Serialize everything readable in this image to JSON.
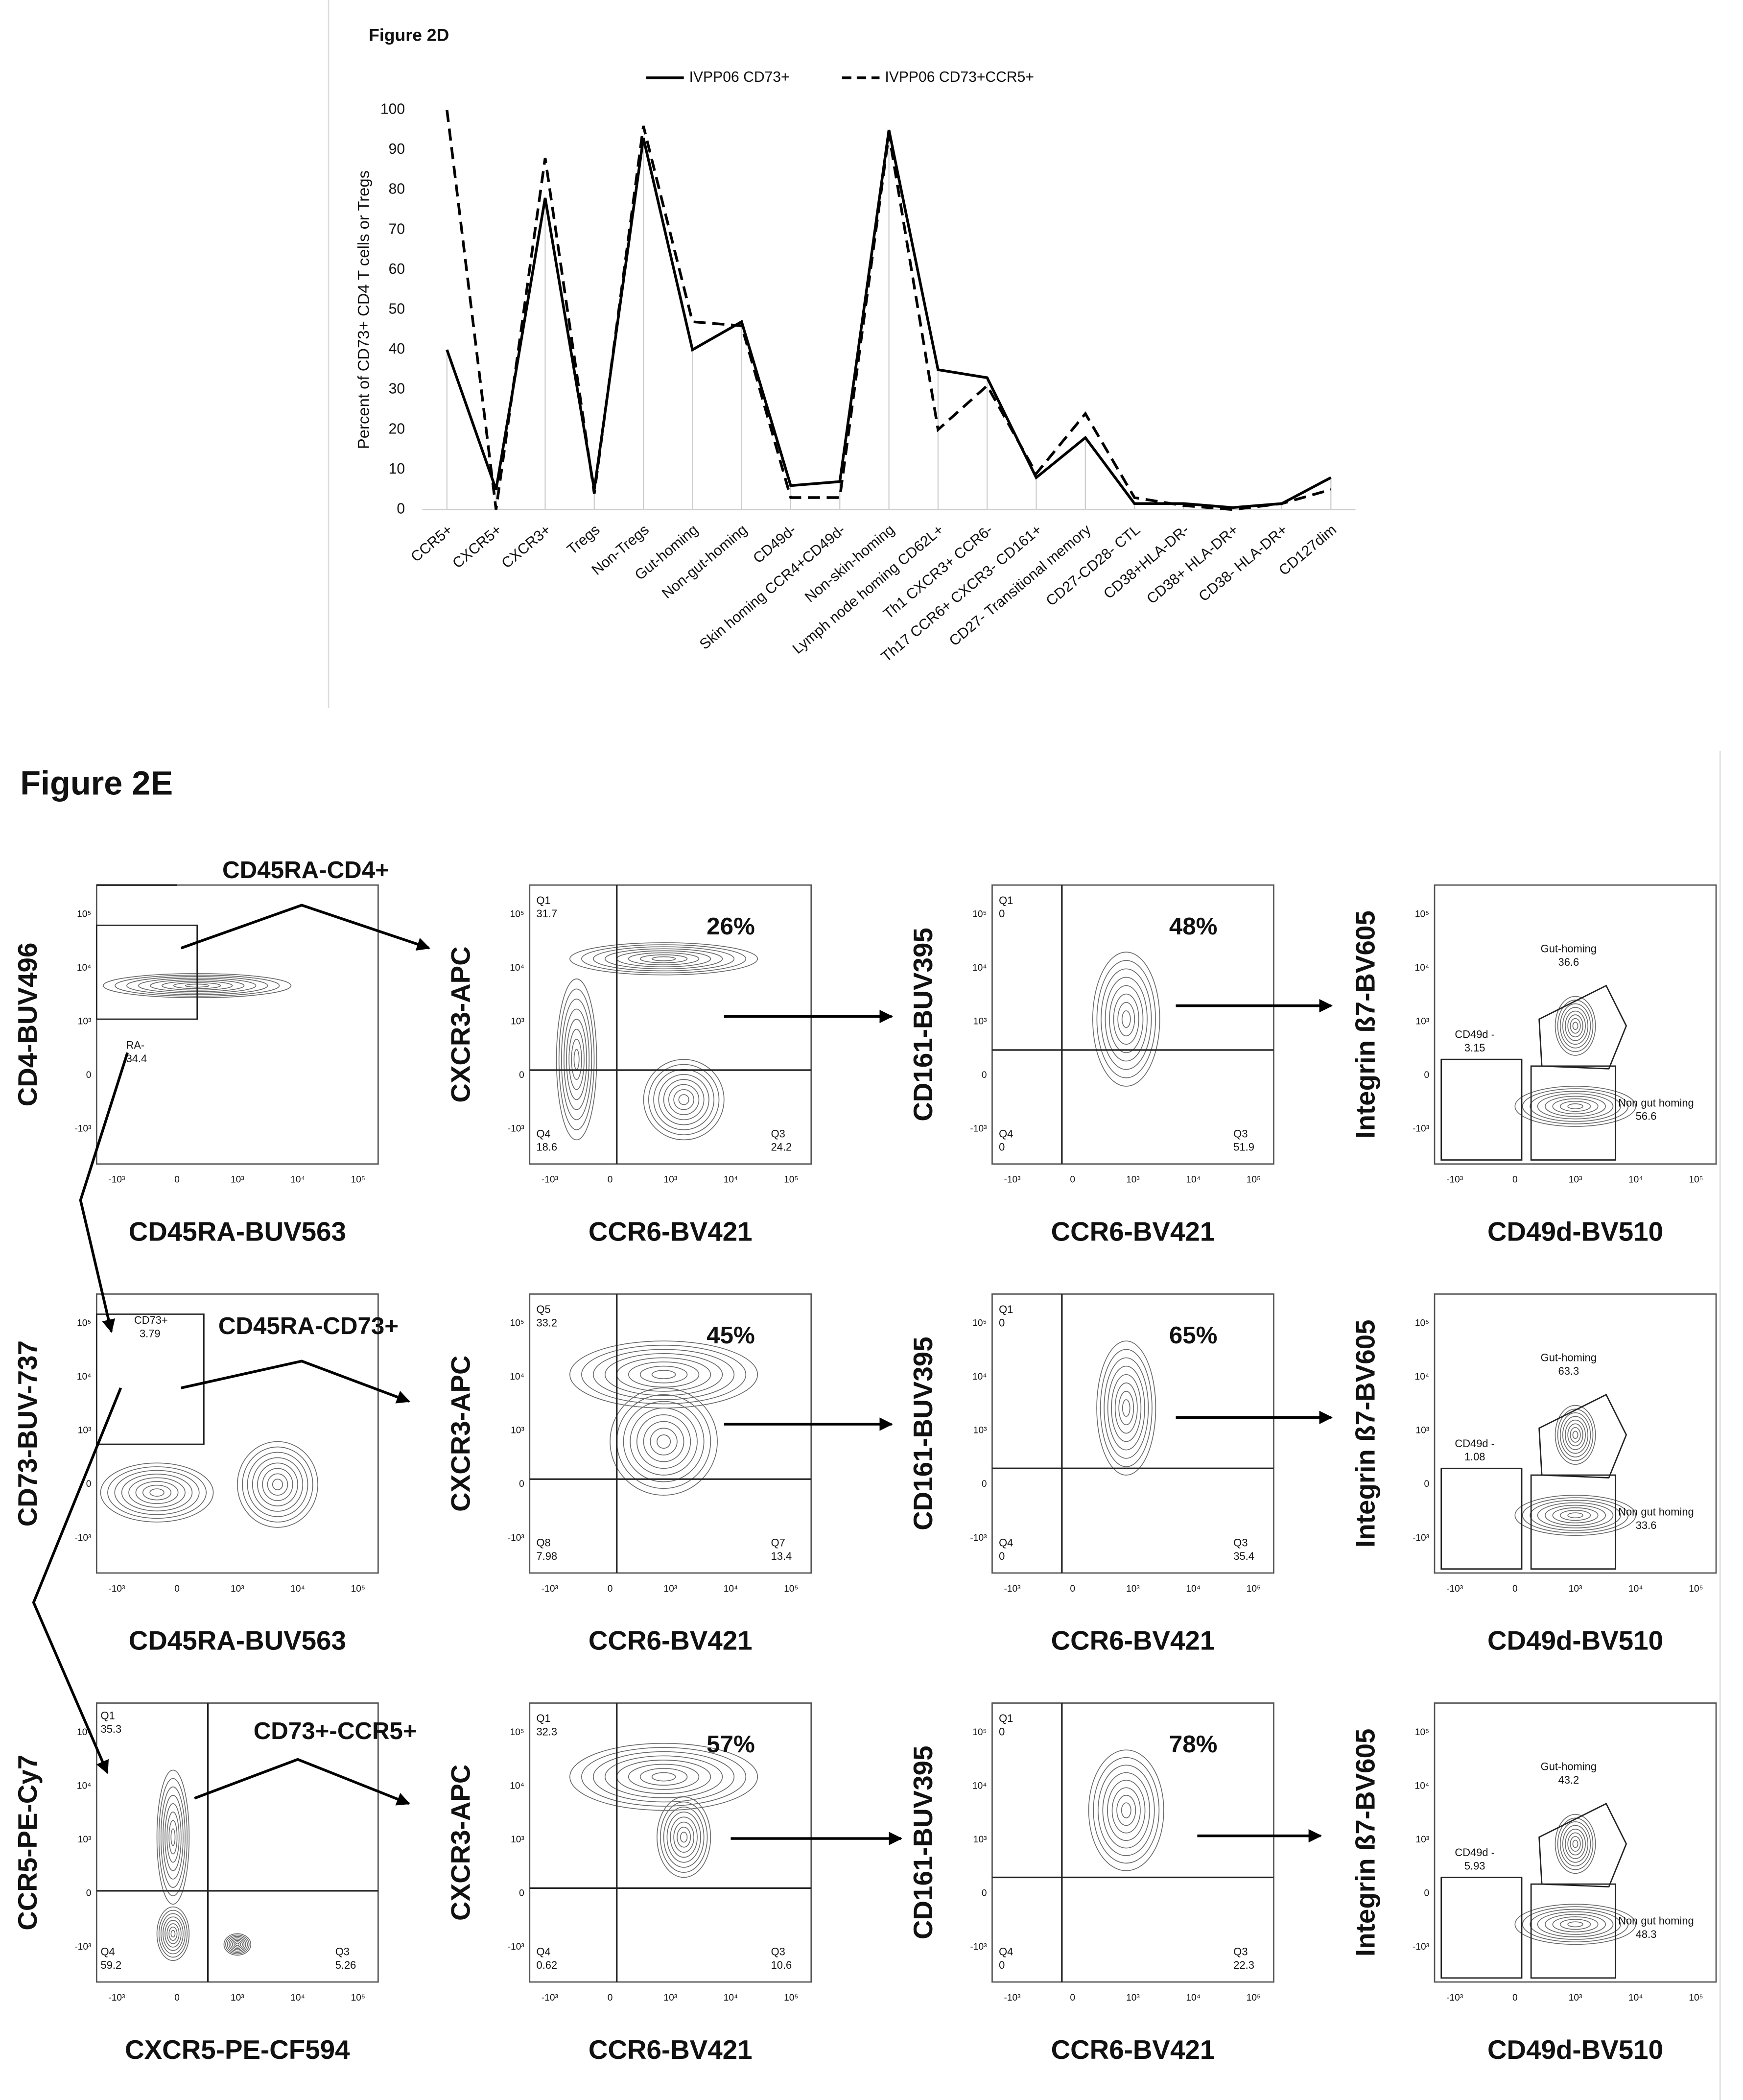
{
  "chart_data": {
    "type": "line",
    "title": "Figure 2D",
    "y_label": "Percent of CD73+ CD4 T cells  or Tregs",
    "categories": [
      "CCR5+",
      "CXCR5+",
      "CXCR3+",
      "Tregs",
      "Non-Tregs",
      "Gut-homing",
      "Non-gut-homing",
      "CD49d-",
      "Skin homing CCR4+CD49d-",
      "Non-skin-homing",
      "Lymph node homing CD62L+",
      "Th1 CXCR3+ CCR6-",
      "Th17 CCR6+ CXCR3- CD161+",
      "CD27- Transitional memory",
      "CD27-CD28- CTL",
      "CD38+HLA-DR-",
      "CD38+ HLA-DR+",
      "CD38- HLA-DR+",
      "CD127dim"
    ],
    "series": [
      {
        "name": "IVPP06 CD73+",
        "color": "#000000",
        "dash": false,
        "values": [
          40,
          5,
          78,
          5,
          93,
          40,
          47,
          6,
          7,
          95,
          35,
          33,
          8,
          18,
          1.5,
          1.5,
          0.5,
          1.5,
          8
        ]
      },
      {
        "name": "IVPP06 CD73+CCR5+",
        "color": "#000000",
        "dash": true,
        "values": [
          100,
          0,
          88,
          4,
          96,
          47,
          46,
          3,
          3,
          94,
          20,
          31,
          9,
          24,
          3,
          1,
          0,
          1.5,
          5
        ]
      }
    ],
    "ylim": [
      0,
      100
    ],
    "yticks": [
      0,
      10,
      20,
      30,
      40,
      50,
      60,
      70,
      80,
      90,
      100
    ],
    "grid": true
  },
  "figure_2e": {
    "title": "Figure 2E",
    "ticks": {
      "y": [
        "10⁵",
        "10⁴",
        "10³",
        "0",
        "-10³"
      ],
      "x": [
        "-10³",
        "0",
        "10³",
        "10⁴",
        "10⁵"
      ]
    },
    "gate_labels": [
      "CD45RA-CD4+",
      "CD45RA-CD73+",
      "CD73+-CCR5+"
    ],
    "rows": [
      [
        {
          "y_label": "CD4-BUV496",
          "x_label": "CD45RA-BUV563",
          "texts": [
            "RA-",
            "34.4"
          ]
        },
        {
          "y_label": "CXCR3-APC",
          "x_label": "CCR6-BV421",
          "texts": [
            "Q1",
            "31.7",
            "26%",
            "Q4",
            "18.6",
            "Q3",
            "24.2"
          ]
        },
        {
          "y_label": "CD161-BUV395",
          "x_label": "CCR6-BV421",
          "texts": [
            "Q1",
            "0",
            "48%",
            "Q4",
            "0",
            "Q3",
            "51.9"
          ]
        },
        {
          "y_label": "Integrin ß7-BV605",
          "x_label": "CD49d-BV510",
          "texts": [
            "Gut-homing",
            "36.6",
            "CD49d -",
            "3.15",
            "Non gut homing",
            "56.6"
          ]
        }
      ],
      [
        {
          "y_label": "CD73-BUV-737",
          "x_label": "CD45RA-BUV563",
          "texts": [
            "CD73+",
            "3.79"
          ]
        },
        {
          "y_label": "CXCR3-APC",
          "x_label": "CCR6-BV421",
          "texts": [
            "Q5",
            "33.2",
            "45%",
            "Q8",
            "7.98",
            "Q7",
            "13.4"
          ]
        },
        {
          "y_label": "CD161-BUV395",
          "x_label": "CCR6-BV421",
          "texts": [
            "Q1",
            "0",
            "65%",
            "Q4",
            "0",
            "Q3",
            "35.4"
          ]
        },
        {
          "y_label": "Integrin ß7-BV605",
          "x_label": "CD49d-BV510",
          "texts": [
            "Gut-homing",
            "63.3",
            "CD49d -",
            "1.08",
            "Non gut homing",
            "33.6"
          ]
        }
      ],
      [
        {
          "y_label": "CCR5-PE-Cy7",
          "x_label": "CXCR5-PE-CF594",
          "texts": [
            "Q1",
            "35.3",
            "Q4",
            "59.2",
            "Q3",
            "5.26"
          ]
        },
        {
          "y_label": "CXCR3-APC",
          "x_label": "CCR6-BV421",
          "texts": [
            "Q1",
            "32.3",
            "57%",
            "Q4",
            "0.62",
            "Q3",
            "10.6"
          ]
        },
        {
          "y_label": "CD161-BUV395",
          "x_label": "CCR6-BV421",
          "texts": [
            "Q1",
            "0",
            "78%",
            "Q4",
            "0",
            "Q3",
            "22.3"
          ]
        },
        {
          "y_label": "Integrin ß7-BV605",
          "x_label": "CD49d-BV510",
          "texts": [
            "Gut-homing",
            "43.2",
            "CD49d -",
            "5.93",
            "Non gut homing",
            "48.3"
          ]
        }
      ]
    ]
  }
}
